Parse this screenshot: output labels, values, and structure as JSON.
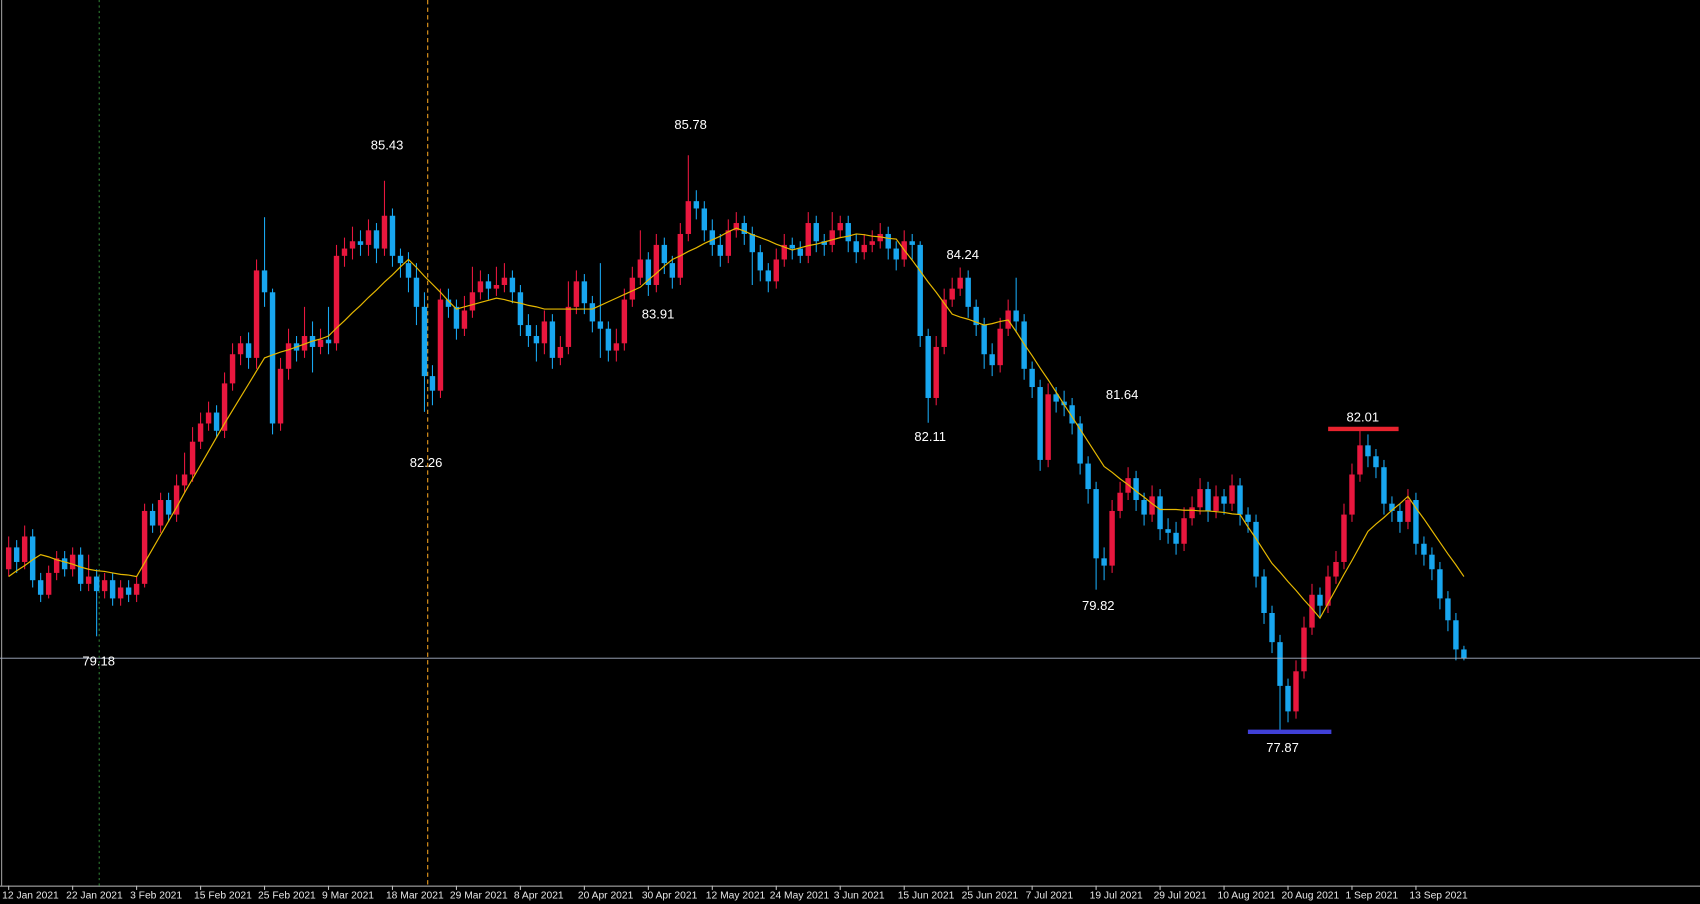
{
  "chart_data": {
    "type": "candlestick",
    "ylim": [
      75.79,
      87.91
    ],
    "bull_color": "#e8173e",
    "bear_color": "#18a6ef",
    "categories": [
      "12 Jan 2021",
      null,
      null,
      null,
      null,
      null,
      null,
      null,
      "22 Jan 2021",
      null,
      null,
      null,
      null,
      null,
      null,
      null,
      "3 Feb 2021",
      null,
      null,
      null,
      null,
      null,
      null,
      null,
      "15 Feb 2021",
      null,
      null,
      null,
      null,
      null,
      null,
      null,
      "25 Feb 2021",
      null,
      null,
      null,
      null,
      null,
      null,
      null,
      "9 Mar 2021",
      null,
      null,
      null,
      null,
      null,
      null,
      null,
      "18 Mar 2021",
      null,
      null,
      null,
      null,
      null,
      null,
      null,
      "29 Mar 2021",
      null,
      null,
      null,
      null,
      null,
      null,
      null,
      "8 Apr 2021",
      null,
      null,
      null,
      null,
      null,
      null,
      null,
      "20 Apr 2021",
      null,
      null,
      null,
      null,
      null,
      null,
      null,
      "30 Apr 2021",
      null,
      null,
      null,
      null,
      null,
      null,
      null,
      "12 May 2021",
      null,
      null,
      null,
      null,
      null,
      null,
      null,
      "24 May 2021",
      null,
      null,
      null,
      null,
      null,
      null,
      null,
      "3 Jun 2021",
      null,
      null,
      null,
      null,
      null,
      null,
      null,
      "15 Jun 2021",
      null,
      null,
      null,
      null,
      null,
      null,
      null,
      "25 Jun 2021",
      null,
      null,
      null,
      null,
      null,
      null,
      null,
      "7 Jul 2021",
      null,
      null,
      null,
      null,
      null,
      null,
      null,
      "19 Jul 2021",
      null,
      null,
      null,
      null,
      null,
      null,
      null,
      "29 Jul 2021",
      null,
      null,
      null,
      null,
      null,
      null,
      null,
      "10 Aug 2021",
      null,
      null,
      null,
      null,
      null,
      null,
      null,
      "20 Aug 2021",
      null,
      null,
      null,
      null,
      null,
      null,
      null,
      "1 Sep 2021",
      null,
      null,
      null,
      null,
      null,
      null,
      null,
      "13 Sep 2021",
      null,
      null,
      null,
      null,
      null,
      null
    ],
    "open": [
      80.1,
      80.4,
      80.2,
      80.55,
      79.95,
      79.75,
      80.05,
      80.25,
      80.1,
      80.3,
      79.9,
      80.0,
      79.8,
      79.95,
      79.7,
      79.85,
      79.75,
      79.9,
      80.9,
      80.7,
      81.05,
      80.85,
      81.25,
      81.4,
      81.85,
      82.1,
      82.25,
      82.0,
      82.65,
      83.05,
      83.2,
      83.0,
      84.2,
      83.9,
      82.1,
      82.85,
      83.2,
      83.1,
      83.3,
      83.15,
      83.25,
      83.2,
      84.4,
      84.5,
      84.6,
      84.55,
      84.75,
      84.5,
      84.95,
      84.4,
      84.3,
      84.1,
      83.7,
      82.75,
      82.55,
      83.8,
      83.7,
      83.4,
      83.65,
      83.9,
      84.05,
      83.95,
      84.0,
      84.1,
      83.9,
      83.45,
      83.3,
      83.2,
      83.5,
      83.0,
      83.15,
      83.7,
      84.05,
      83.75,
      83.5,
      83.4,
      83.1,
      83.2,
      83.8,
      84.1,
      84.35,
      84.0,
      84.55,
      84.3,
      84.1,
      84.7,
      85.15,
      85.05,
      84.75,
      84.55,
      84.4,
      84.75,
      84.85,
      84.7,
      84.45,
      84.2,
      84.05,
      84.35,
      84.55,
      84.5,
      84.4,
      84.85,
      84.6,
      84.55,
      84.75,
      84.85,
      84.6,
      84.45,
      84.55,
      84.6,
      84.7,
      84.5,
      84.35,
      84.6,
      84.55,
      83.3,
      82.45,
      83.15,
      83.8,
      83.95,
      84.1,
      83.7,
      83.45,
      83.05,
      82.9,
      83.4,
      83.65,
      83.5,
      82.85,
      82.6,
      81.6,
      82.5,
      82.4,
      82.35,
      82.1,
      81.55,
      81.2,
      80.25,
      80.15,
      80.9,
      81.15,
      81.35,
      81.05,
      80.85,
      81.1,
      80.65,
      80.6,
      80.45,
      80.8,
      80.95,
      81.2,
      80.9,
      81.1,
      81.0,
      81.25,
      80.85,
      80.75,
      80.0,
      79.5,
      79.1,
      78.5,
      78.15,
      78.7,
      79.3,
      79.75,
      79.6,
      80.0,
      80.2,
      80.85,
      81.4,
      81.8,
      81.65,
      81.5,
      81.0,
      80.9,
      80.75,
      81.05,
      80.45,
      80.3,
      80.1,
      79.7,
      79.4,
      79.0
    ],
    "high": [
      80.55,
      80.5,
      80.7,
      80.65,
      80.05,
      80.15,
      80.35,
      80.35,
      80.4,
      80.4,
      80.3,
      80.1,
      80.05,
      80.05,
      79.95,
      79.95,
      80.0,
      81.0,
      81.0,
      81.15,
      81.15,
      81.4,
      81.7,
      82.05,
      82.25,
      82.4,
      82.35,
      82.8,
      83.2,
      83.3,
      83.35,
      84.35,
      84.93,
      83.95,
      83.0,
      83.4,
      83.3,
      83.7,
      83.5,
      83.4,
      83.7,
      84.55,
      84.65,
      84.8,
      84.75,
      84.9,
      84.85,
      85.43,
      85.05,
      84.5,
      84.45,
      84.3,
      83.9,
      82.9,
      83.95,
      83.95,
      83.8,
      83.85,
      84.25,
      84.2,
      84.15,
      84.25,
      84.3,
      84.2,
      84.0,
      83.6,
      83.45,
      83.65,
      83.6,
      83.3,
      84.05,
      84.2,
      84.15,
      83.85,
      84.3,
      83.5,
      83.4,
      83.95,
      84.25,
      84.75,
      84.45,
      84.7,
      84.65,
      84.4,
      84.85,
      85.78,
      85.3,
      85.15,
      84.9,
      84.7,
      84.9,
      85.0,
      84.95,
      84.8,
      84.55,
      84.3,
      84.5,
      84.7,
      84.65,
      84.6,
      85.0,
      84.95,
      84.7,
      85.0,
      84.95,
      84.95,
      84.7,
      84.7,
      84.75,
      84.85,
      84.8,
      84.6,
      84.75,
      84.7,
      84.6,
      83.4,
      83.3,
      83.95,
      84.1,
      84.24,
      84.2,
      83.8,
      83.55,
      83.2,
      83.55,
      83.8,
      84.1,
      83.6,
      82.95,
      82.7,
      82.65,
      82.6,
      82.55,
      82.45,
      82.2,
      81.65,
      81.3,
      80.4,
      81.05,
      81.3,
      81.5,
      81.45,
      81.15,
      81.25,
      81.2,
      80.8,
      80.75,
      80.95,
      81.1,
      81.35,
      81.3,
      81.25,
      81.2,
      81.4,
      81.35,
      80.95,
      80.85,
      80.1,
      79.6,
      79.2,
      78.6,
      78.85,
      79.45,
      79.9,
      79.85,
      80.15,
      80.35,
      81.0,
      81.55,
      82.01,
      81.95,
      81.75,
      81.6,
      81.1,
      81.0,
      81.2,
      81.15,
      80.55,
      80.4,
      80.2,
      79.8,
      79.5,
      79.05
    ],
    "low": [
      80.0,
      80.05,
      80.1,
      79.85,
      79.65,
      79.7,
      79.95,
      80.0,
      80.0,
      79.8,
      79.8,
      79.18,
      79.7,
      79.6,
      79.6,
      79.65,
      79.65,
      79.85,
      80.6,
      80.6,
      80.75,
      80.75,
      81.15,
      81.3,
      81.75,
      82.0,
      81.9,
      81.9,
      82.55,
      82.9,
      82.85,
      82.85,
      83.7,
      81.95,
      82.0,
      82.7,
      82.95,
      83.0,
      82.8,
      83.05,
      83.05,
      83.1,
      84.25,
      84.35,
      84.4,
      84.4,
      84.3,
      84.4,
      84.25,
      84.1,
      83.9,
      83.45,
      82.26,
      82.35,
      82.45,
      83.55,
      83.25,
      83.3,
      83.55,
      83.8,
      83.8,
      83.85,
      83.9,
      83.75,
      83.3,
      83.15,
      82.95,
      83.05,
      82.85,
      82.9,
      83.05,
      83.6,
      83.6,
      83.35,
      83.0,
      82.95,
      82.95,
      83.1,
      83.7,
      84.0,
      83.85,
      83.9,
      84.15,
      83.95,
      84.0,
      84.6,
      84.9,
      84.6,
      84.4,
      84.25,
      84.3,
      84.65,
      84.55,
      84.0,
      84.05,
      83.9,
      83.95,
      84.25,
      84.35,
      84.3,
      84.3,
      84.45,
      84.4,
      84.45,
      84.65,
      84.45,
      84.3,
      84.35,
      84.45,
      84.5,
      84.35,
      84.2,
      84.25,
      84.35,
      83.15,
      82.11,
      82.35,
      83.05,
      83.7,
      83.85,
      83.55,
      83.3,
      82.85,
      82.75,
      82.8,
      83.3,
      83.35,
      82.7,
      82.45,
      81.45,
      81.5,
      82.25,
      82.2,
      81.95,
      81.4,
      81.0,
      79.82,
      79.95,
      80.05,
      80.8,
      81.05,
      80.9,
      80.7,
      80.75,
      80.5,
      80.45,
      80.3,
      80.35,
      80.7,
      80.85,
      80.75,
      80.8,
      80.85,
      80.9,
      80.7,
      80.6,
      79.85,
      79.35,
      78.95,
      77.87,
      78.0,
      78.05,
      78.6,
      79.2,
      79.45,
      79.5,
      79.9,
      80.1,
      80.75,
      81.3,
      81.5,
      81.35,
      80.85,
      80.75,
      80.6,
      80.65,
      80.3,
      80.15,
      79.95,
      79.55,
      79.25,
      78.85,
      78.85
    ],
    "close": [
      80.4,
      80.2,
      80.55,
      79.95,
      79.75,
      80.05,
      80.25,
      80.1,
      80.3,
      79.9,
      80.0,
      79.8,
      79.95,
      79.7,
      79.85,
      79.75,
      79.9,
      80.9,
      80.7,
      81.05,
      80.85,
      81.25,
      81.4,
      81.85,
      82.1,
      82.25,
      82.0,
      82.65,
      83.05,
      83.2,
      83.0,
      84.2,
      83.9,
      82.1,
      82.85,
      83.2,
      83.1,
      83.3,
      83.15,
      83.25,
      83.2,
      84.4,
      84.5,
      84.6,
      84.55,
      84.75,
      84.5,
      84.95,
      84.4,
      84.3,
      84.1,
      83.7,
      82.75,
      82.55,
      83.8,
      83.7,
      83.4,
      83.65,
      83.9,
      84.05,
      83.95,
      84.0,
      84.1,
      83.9,
      83.45,
      83.3,
      83.2,
      83.5,
      83.0,
      83.15,
      83.7,
      84.05,
      83.75,
      83.5,
      83.4,
      83.1,
      83.2,
      83.8,
      84.1,
      84.35,
      84.0,
      84.55,
      84.3,
      84.1,
      84.7,
      85.15,
      85.05,
      84.75,
      84.55,
      84.4,
      84.75,
      84.85,
      84.7,
      84.45,
      84.2,
      84.05,
      84.35,
      84.55,
      84.5,
      84.4,
      84.85,
      84.6,
      84.55,
      84.75,
      84.85,
      84.6,
      84.45,
      84.55,
      84.6,
      84.7,
      84.5,
      84.35,
      84.6,
      84.55,
      83.3,
      82.45,
      83.15,
      83.8,
      83.95,
      84.1,
      83.7,
      83.45,
      83.05,
      82.9,
      83.4,
      83.65,
      83.5,
      82.85,
      82.6,
      81.6,
      82.5,
      82.4,
      82.35,
      82.1,
      81.55,
      81.2,
      80.25,
      80.15,
      80.9,
      81.15,
      81.35,
      81.05,
      80.85,
      81.1,
      80.65,
      80.6,
      80.45,
      80.8,
      80.95,
      81.2,
      80.9,
      81.1,
      81.0,
      81.25,
      80.85,
      80.75,
      80.0,
      79.5,
      79.1,
      78.5,
      78.15,
      78.7,
      79.3,
      79.75,
      79.6,
      80.0,
      80.2,
      80.85,
      81.4,
      81.8,
      81.65,
      81.5,
      81.0,
      80.9,
      80.75,
      81.05,
      80.45,
      80.3,
      80.1,
      79.7,
      79.4,
      79.0,
      78.88
    ],
    "ma": {
      "color": "#e6b800",
      "values": [
        80.0,
        80.08,
        80.15,
        80.23,
        80.3,
        80.27,
        80.23,
        80.2,
        80.17,
        80.13,
        80.1,
        80.08,
        80.07,
        80.05,
        80.03,
        80.02,
        80.0,
        80.19,
        80.38,
        80.57,
        80.76,
        80.95,
        81.15,
        81.34,
        81.53,
        81.72,
        81.91,
        82.1,
        82.28,
        82.46,
        82.64,
        82.82,
        83.0,
        83.04,
        83.08,
        83.11,
        83.15,
        83.19,
        83.23,
        83.26,
        83.3,
        83.41,
        83.51,
        83.62,
        83.72,
        83.83,
        83.93,
        84.04,
        84.14,
        84.25,
        84.35,
        84.24,
        84.12,
        84.01,
        83.9,
        83.78,
        83.67,
        83.7,
        83.73,
        83.76,
        83.79,
        83.82,
        83.8,
        83.77,
        83.75,
        83.72,
        83.7,
        83.67,
        83.67,
        83.67,
        83.67,
        83.67,
        83.67,
        83.67,
        83.72,
        83.77,
        83.82,
        83.87,
        83.92,
        83.97,
        84.07,
        84.16,
        84.26,
        84.35,
        84.4,
        84.46,
        84.51,
        84.57,
        84.62,
        84.67,
        84.73,
        84.78,
        84.74,
        84.69,
        84.65,
        84.61,
        84.56,
        84.52,
        84.48,
        84.51,
        84.54,
        84.56,
        84.59,
        84.62,
        84.65,
        84.67,
        84.7,
        84.69,
        84.67,
        84.66,
        84.64,
        84.63,
        84.48,
        84.34,
        84.19,
        84.04,
        83.9,
        83.75,
        83.6,
        83.56,
        83.53,
        83.49,
        83.45,
        83.47,
        83.5,
        83.52,
        83.36,
        83.19,
        83.03,
        82.86,
        82.7,
        82.53,
        82.36,
        82.19,
        82.02,
        81.85,
        81.68,
        81.51,
        81.43,
        81.34,
        81.26,
        81.17,
        81.09,
        81.0,
        80.92,
        80.92,
        80.92,
        80.91,
        80.91,
        80.9,
        80.9,
        80.89,
        80.88,
        80.86,
        80.85,
        80.68,
        80.52,
        80.35,
        80.18,
        80.06,
        79.93,
        79.81,
        79.68,
        79.56,
        79.43,
        79.63,
        79.83,
        80.03,
        80.22,
        80.42,
        80.62,
        80.72,
        80.81,
        80.91,
        81.0,
        81.1,
        80.94,
        80.79,
        80.63,
        80.47,
        80.31,
        80.16,
        80.0
      ]
    },
    "price_labels": [
      85.43,
      85.78,
      83.91,
      84.24,
      82.26,
      82.11,
      81.64,
      79.82,
      79.18,
      77.87,
      82.01
    ]
  }
}
